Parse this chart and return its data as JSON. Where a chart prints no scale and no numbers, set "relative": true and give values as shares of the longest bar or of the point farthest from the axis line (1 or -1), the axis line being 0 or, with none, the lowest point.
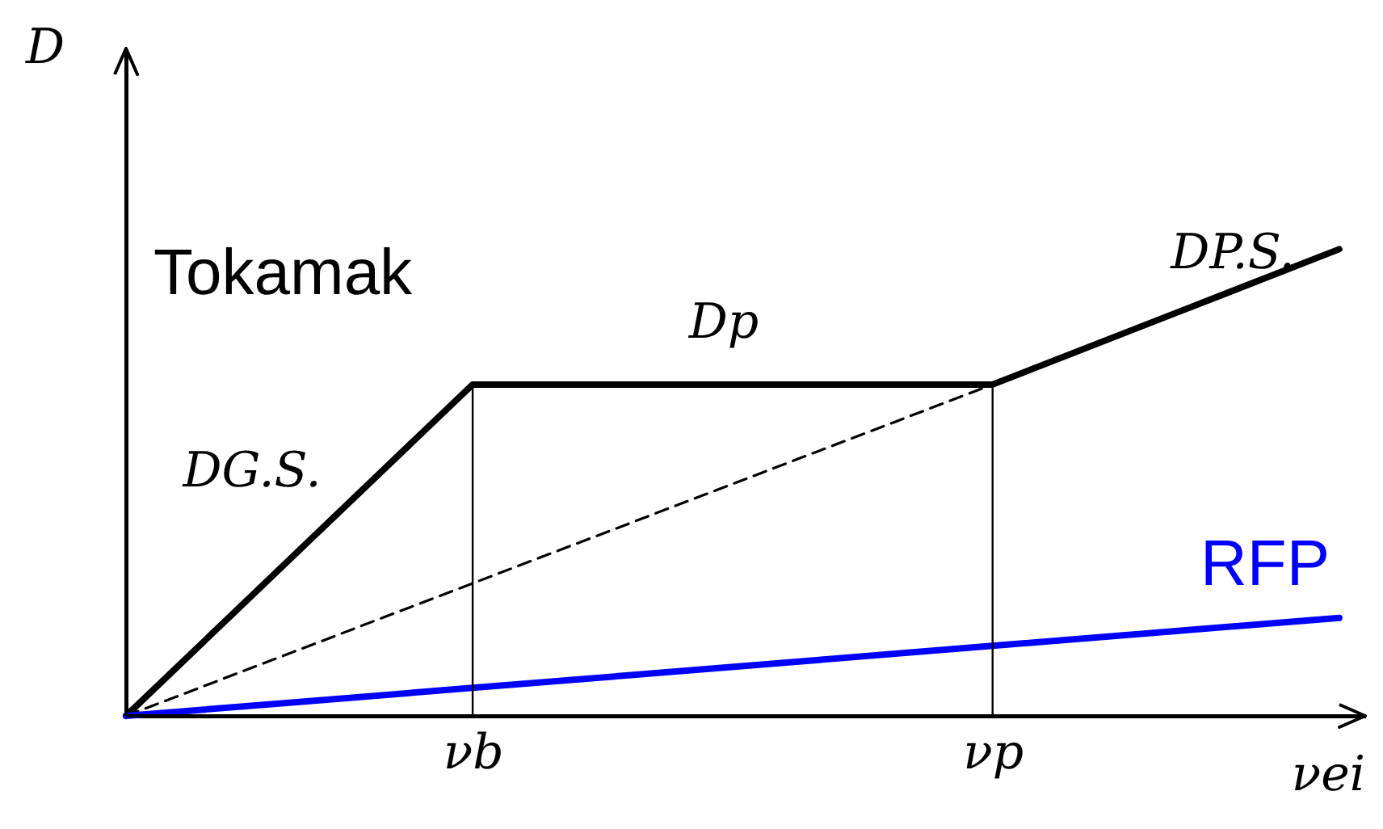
{
  "chart_data": {
    "type": "line",
    "relative": true,
    "ylabel": "D",
    "xlabel": "νei",
    "categories": [
      null,
      null,
      "νb",
      null,
      null,
      "νp",
      null,
      null
    ],
    "series": [
      {
        "name": "Tokamak",
        "color": "#000000",
        "values": [
          0,
          0.355,
          0.71,
          0.71,
          0.71,
          0.71,
          0.855,
          1
        ],
        "line_style": "solid"
      },
      {
        "color": "#000000",
        "values": [
          0,
          0.142,
          0.284,
          0.426,
          0.568,
          0.71,
          null,
          null
        ],
        "line_style": "dashed"
      },
      {
        "name": "RFP",
        "color": "#0000ff",
        "values": [
          0,
          0.03,
          0.06,
          0.09,
          0.12,
          0.15,
          0.18,
          0.21
        ],
        "line_style": "solid"
      }
    ],
    "ref_lines": [
      {
        "axis": "x",
        "value": "νb",
        "color": "#000000"
      },
      {
        "axis": "x",
        "value": "νp",
        "color": "#000000"
      }
    ],
    "annotations": [
      "DG.S.",
      "Dp",
      "DP.S."
    ]
  }
}
